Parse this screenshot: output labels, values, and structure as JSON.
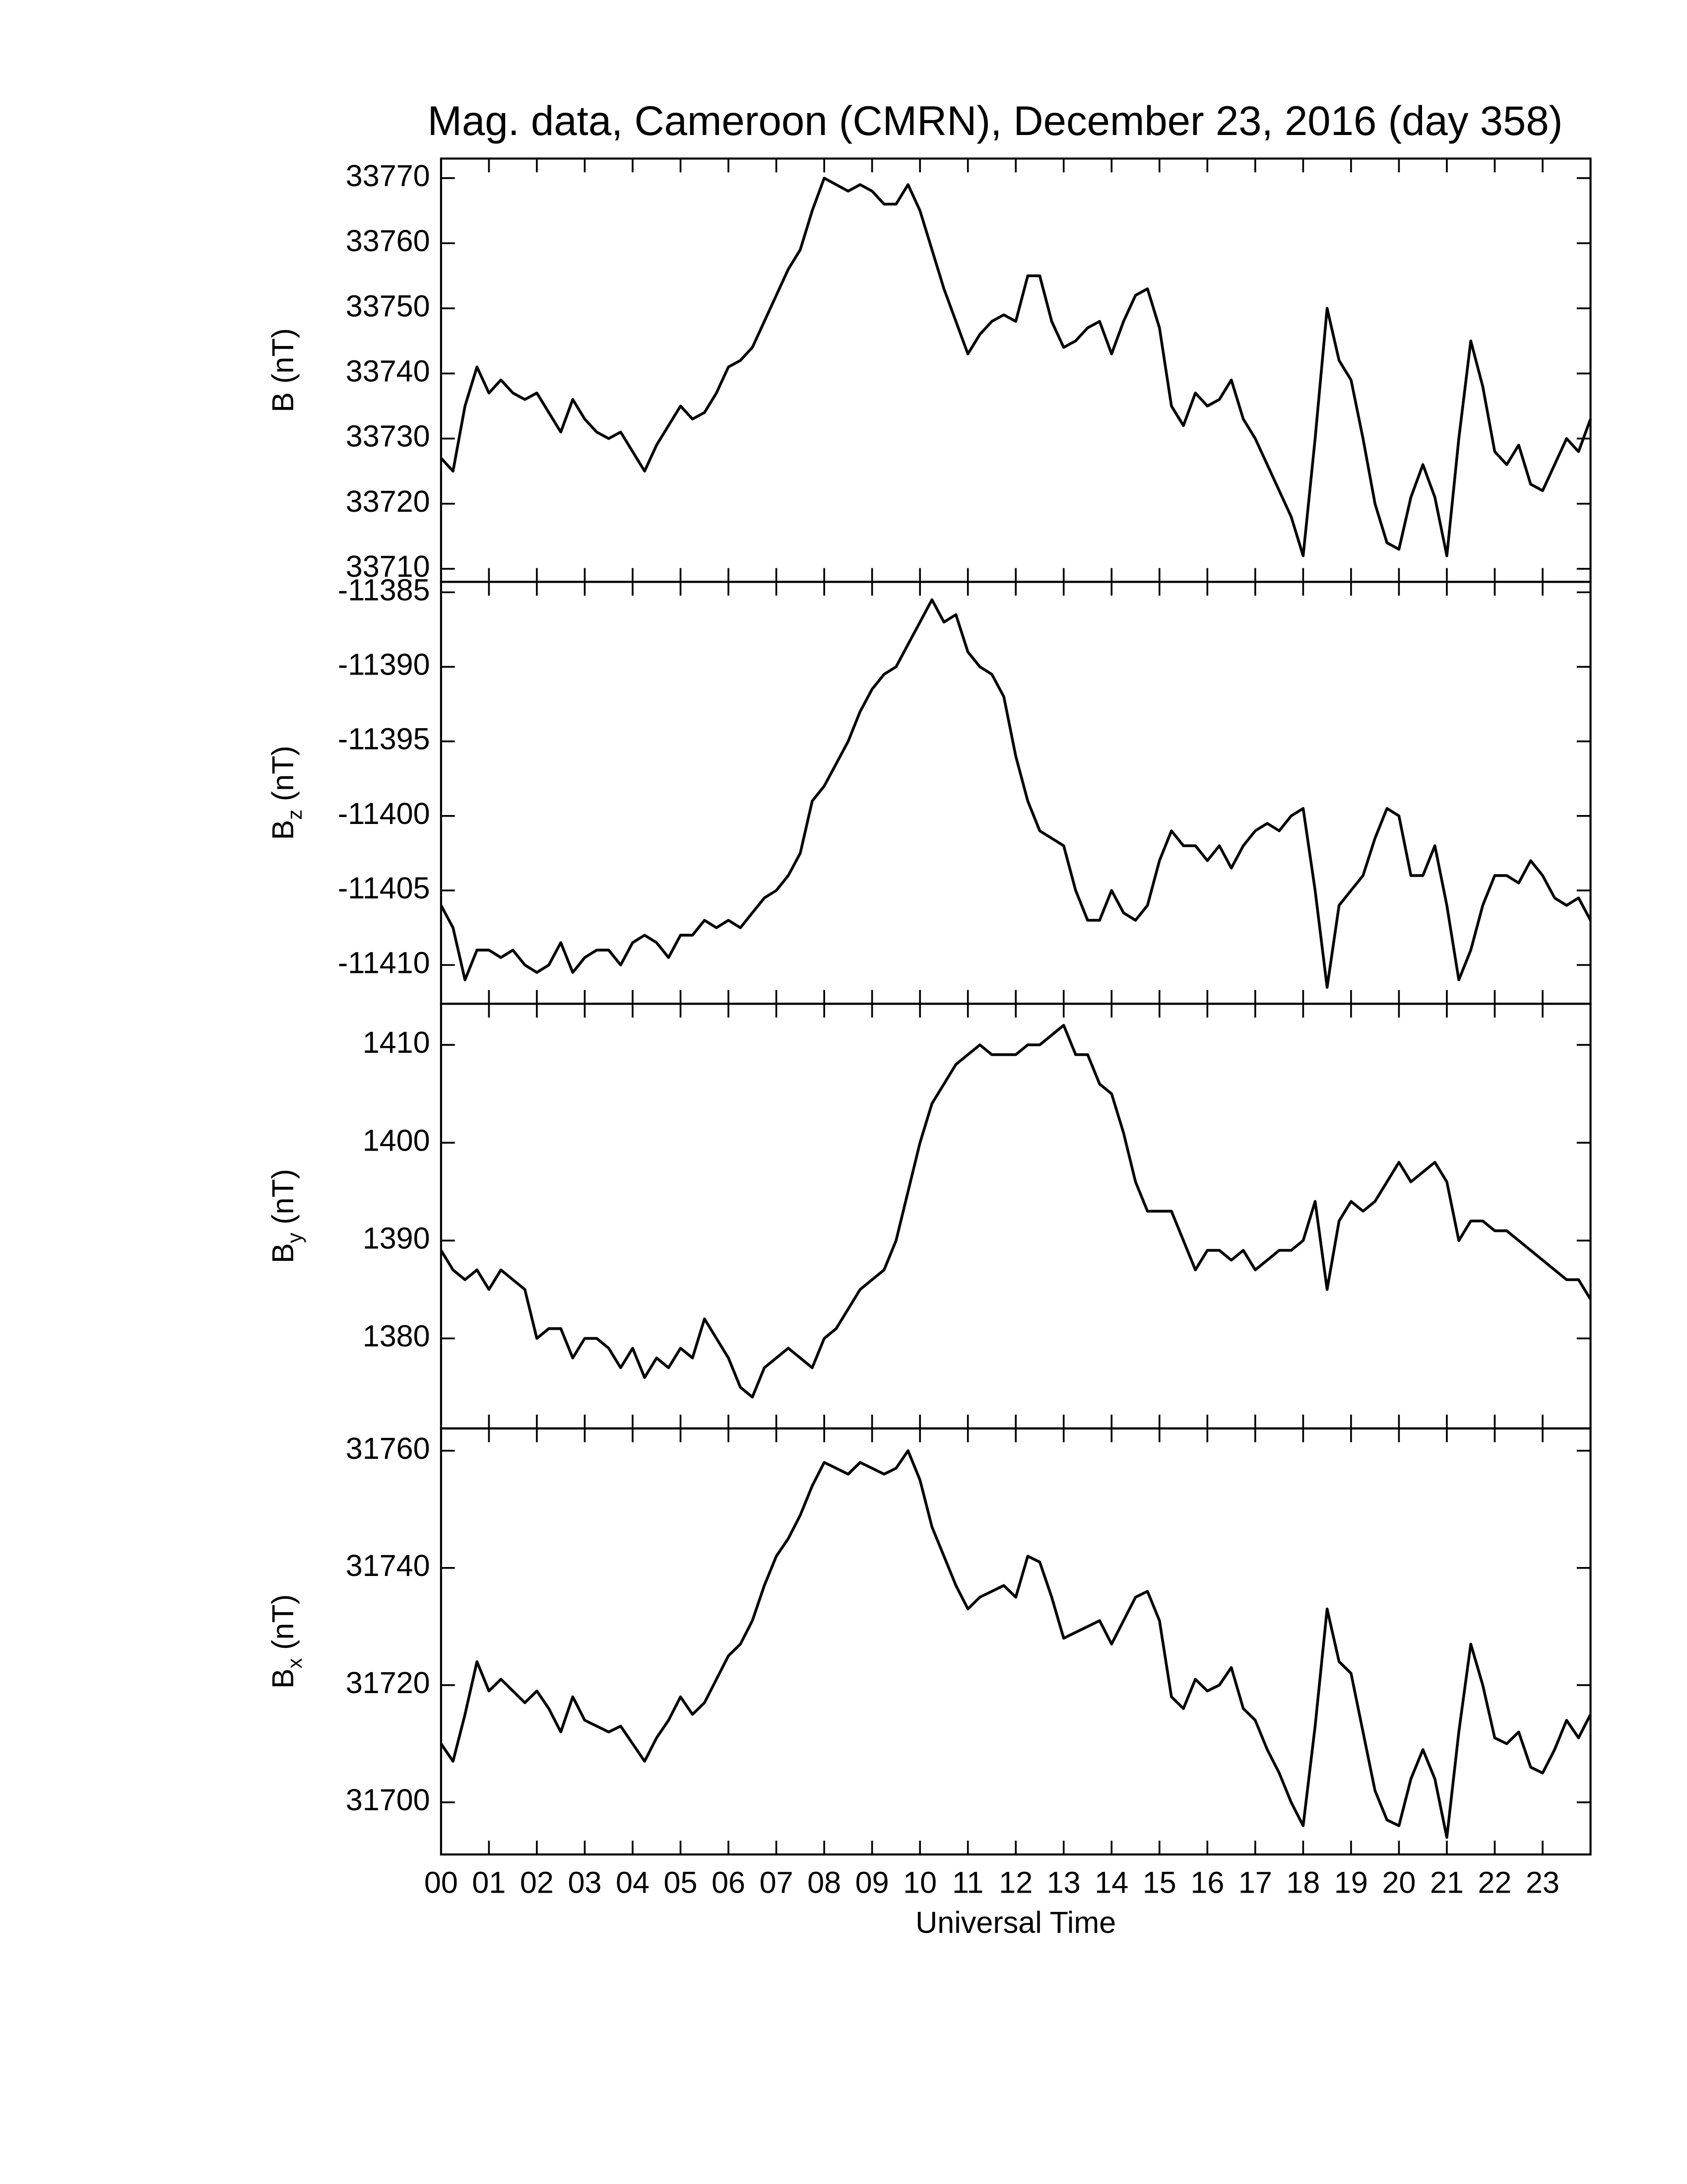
{
  "chart_data": [
    {
      "type": "line",
      "title": "Mag. data, Cameroon (CMRN), December 23, 2016 (day 358)",
      "ylabel": "B (nT)",
      "color": "#000000",
      "xlim": [
        0,
        24
      ],
      "ylim": [
        33708,
        33773
      ],
      "yticks": [
        33710,
        33720,
        33730,
        33740,
        33750,
        33760,
        33770
      ],
      "x": [
        0,
        0.25,
        0.5,
        0.75,
        1,
        1.25,
        1.5,
        1.75,
        2,
        2.25,
        2.5,
        2.75,
        3,
        3.25,
        3.5,
        3.75,
        4,
        4.25,
        4.5,
        4.75,
        5,
        5.25,
        5.5,
        5.75,
        6,
        6.25,
        6.5,
        6.75,
        7,
        7.25,
        7.5,
        7.75,
        8,
        8.25,
        8.5,
        8.75,
        9,
        9.25,
        9.5,
        9.75,
        10,
        10.25,
        10.5,
        10.75,
        11,
        11.25,
        11.5,
        11.75,
        12,
        12.25,
        12.5,
        12.75,
        13,
        13.25,
        13.5,
        13.75,
        14,
        14.25,
        14.5,
        14.75,
        15,
        15.25,
        15.5,
        15.75,
        16,
        16.25,
        16.5,
        16.75,
        17,
        17.25,
        17.5,
        17.75,
        18,
        18.25,
        18.5,
        18.75,
        19,
        19.25,
        19.5,
        19.75,
        20,
        20.25,
        20.5,
        20.75,
        21,
        21.25,
        21.5,
        21.75,
        22,
        22.25,
        22.5,
        22.75,
        23,
        23.25,
        23.5,
        23.75,
        24
      ],
      "values": [
        33727,
        33725,
        33735,
        33741,
        33737,
        33739,
        33737,
        33736,
        33737,
        33734,
        33731,
        33736,
        33733,
        33731,
        33730,
        33731,
        33728,
        33725,
        33729,
        33732,
        33735,
        33733,
        33734,
        33737,
        33741,
        33742,
        33744,
        33748,
        33752,
        33756,
        33759,
        33765,
        33770,
        33769,
        33768,
        33769,
        33768,
        33766,
        33766,
        33769,
        33765,
        33759,
        33753,
        33748,
        33743,
        33746,
        33748,
        33749,
        33748,
        33755,
        33755,
        33748,
        33744,
        33745,
        33747,
        33748,
        33743,
        33748,
        33752,
        33753,
        33747,
        33735,
        33732,
        33737,
        33735,
        33736,
        33739,
        33733,
        33730,
        33726,
        33722,
        33718,
        33712,
        33730,
        33750,
        33742,
        33739,
        33730,
        33720,
        33714,
        33713,
        33721,
        33726,
        33721,
        33712,
        33730,
        33745,
        33738,
        33728,
        33726,
        33729,
        33723,
        33722,
        33726,
        33730,
        33728,
        33733
      ]
    },
    {
      "type": "line",
      "ylabel": "B",
      "ylabel_subscript": "z",
      "ylabel_unit": "(nT)",
      "color": "#000000",
      "xlim": [
        0,
        24
      ],
      "ylim": [
        -11412.6,
        -11384.3
      ],
      "yticks": [
        -11410,
        -11405,
        -11400,
        -11395,
        -11390,
        -11385
      ],
      "x": [
        0,
        0.25,
        0.5,
        0.75,
        1,
        1.25,
        1.5,
        1.75,
        2,
        2.25,
        2.5,
        2.75,
        3,
        3.25,
        3.5,
        3.75,
        4,
        4.25,
        4.5,
        4.75,
        5,
        5.25,
        5.5,
        5.75,
        6,
        6.25,
        6.5,
        6.75,
        7,
        7.25,
        7.5,
        7.75,
        8,
        8.25,
        8.5,
        8.75,
        9,
        9.25,
        9.5,
        9.75,
        10,
        10.25,
        10.5,
        10.75,
        11,
        11.25,
        11.5,
        11.75,
        12,
        12.25,
        12.5,
        12.75,
        13,
        13.25,
        13.5,
        13.75,
        14,
        14.25,
        14.5,
        14.75,
        15,
        15.25,
        15.5,
        15.75,
        16,
        16.25,
        16.5,
        16.75,
        17,
        17.25,
        17.5,
        17.75,
        18,
        18.25,
        18.5,
        18.75,
        19,
        19.25,
        19.5,
        19.75,
        20,
        20.25,
        20.5,
        20.75,
        21,
        21.25,
        21.5,
        21.75,
        22,
        22.25,
        22.5,
        22.75,
        23,
        23.25,
        23.5,
        23.75,
        24
      ],
      "values": [
        -11406,
        -11407.5,
        -11411,
        -11409,
        -11409,
        -11409.5,
        -11409,
        -11410,
        -11410.5,
        -11410,
        -11408.5,
        -11410.5,
        -11409.5,
        -11409,
        -11409,
        -11410,
        -11408.5,
        -11408,
        -11408.5,
        -11409.5,
        -11408,
        -11408,
        -11407,
        -11407.5,
        -11407,
        -11407.5,
        -11406.5,
        -11405.5,
        -11405,
        -11404,
        -11402.5,
        -11399,
        -11398,
        -11396.5,
        -11395,
        -11393,
        -11391.5,
        -11390.5,
        -11390,
        -11388.5,
        -11387,
        -11385.5,
        -11387,
        -11386.5,
        -11389,
        -11390,
        -11390.5,
        -11392,
        -11396,
        -11399,
        -11401,
        -11401.5,
        -11402,
        -11405,
        -11407,
        -11407,
        -11405,
        -11406.5,
        -11407,
        -11406,
        -11403,
        -11401,
        -11402,
        -11402,
        -11403,
        -11402,
        -11403.5,
        -11402,
        -11401,
        -11400.5,
        -11401,
        -11400,
        -11399.5,
        -11405,
        -11411.5,
        -11406,
        -11405,
        -11404,
        -11401.5,
        -11399.5,
        -11400,
        -11404,
        -11404,
        -11402,
        -11406,
        -11411,
        -11409,
        -11406,
        -11404,
        -11404,
        -11404.5,
        -11403,
        -11404,
        -11405.5,
        -11406,
        -11405.5,
        -11407
      ]
    },
    {
      "type": "line",
      "ylabel": "B",
      "ylabel_subscript": "y",
      "ylabel_unit": "(nT)",
      "color": "#000000",
      "xlim": [
        0,
        24
      ],
      "ylim": [
        1370.8,
        1414.2
      ],
      "yticks": [
        1380,
        1390,
        1400,
        1410
      ],
      "x": [
        0,
        0.25,
        0.5,
        0.75,
        1,
        1.25,
        1.5,
        1.75,
        2,
        2.25,
        2.5,
        2.75,
        3,
        3.25,
        3.5,
        3.75,
        4,
        4.25,
        4.5,
        4.75,
        5,
        5.25,
        5.5,
        5.75,
        6,
        6.25,
        6.5,
        6.75,
        7,
        7.25,
        7.5,
        7.75,
        8,
        8.25,
        8.5,
        8.75,
        9,
        9.25,
        9.5,
        9.75,
        10,
        10.25,
        10.5,
        10.75,
        11,
        11.25,
        11.5,
        11.75,
        12,
        12.25,
        12.5,
        12.75,
        13,
        13.25,
        13.5,
        13.75,
        14,
        14.25,
        14.5,
        14.75,
        15,
        15.25,
        15.5,
        15.75,
        16,
        16.25,
        16.5,
        16.75,
        17,
        17.25,
        17.5,
        17.75,
        18,
        18.25,
        18.5,
        18.75,
        19,
        19.25,
        19.5,
        19.75,
        20,
        20.25,
        20.5,
        20.75,
        21,
        21.25,
        21.5,
        21.75,
        22,
        22.25,
        22.5,
        22.75,
        23,
        23.25,
        23.5,
        23.75,
        24
      ],
      "values": [
        1389,
        1387,
        1386,
        1387,
        1385,
        1387,
        1386,
        1385,
        1380,
        1381,
        1381,
        1378,
        1380,
        1380,
        1379,
        1377,
        1379,
        1376,
        1378,
        1377,
        1379,
        1378,
        1382,
        1380,
        1378,
        1375,
        1374,
        1377,
        1378,
        1379,
        1378,
        1377,
        1380,
        1381,
        1383,
        1385,
        1386,
        1387,
        1390,
        1395,
        1400,
        1404,
        1406,
        1408,
        1409,
        1410,
        1409,
        1409,
        1409,
        1410,
        1410,
        1411,
        1412,
        1409,
        1409,
        1406,
        1405,
        1401,
        1396,
        1393,
        1393,
        1393,
        1390,
        1387,
        1389,
        1389,
        1388,
        1389,
        1387,
        1388,
        1389,
        1389,
        1390,
        1394,
        1385,
        1392,
        1394,
        1393,
        1394,
        1396,
        1398,
        1396,
        1397,
        1398,
        1396,
        1390,
        1392,
        1392,
        1391,
        1391,
        1390,
        1389,
        1388,
        1387,
        1386,
        1386,
        1384
      ]
    },
    {
      "type": "line",
      "ylabel": "B",
      "ylabel_subscript": "x",
      "ylabel_unit": "(nT)",
      "xlabel": "Universal Time",
      "color": "#000000",
      "xlim": [
        0,
        24
      ],
      "ylim": [
        31691.1,
        31763.8
      ],
      "yticks": [
        31700,
        31720,
        31740,
        31760
      ],
      "xticks": [
        {
          "value": 0,
          "label": "00"
        },
        {
          "value": 1,
          "label": "01"
        },
        {
          "value": 2,
          "label": "02"
        },
        {
          "value": 3,
          "label": "03"
        },
        {
          "value": 4,
          "label": "04"
        },
        {
          "value": 5,
          "label": "05"
        },
        {
          "value": 6,
          "label": "06"
        },
        {
          "value": 7,
          "label": "07"
        },
        {
          "value": 8,
          "label": "08"
        },
        {
          "value": 9,
          "label": "09"
        },
        {
          "value": 10,
          "label": "10"
        },
        {
          "value": 11,
          "label": "11"
        },
        {
          "value": 12,
          "label": "12"
        },
        {
          "value": 13,
          "label": "13"
        },
        {
          "value": 14,
          "label": "14"
        },
        {
          "value": 15,
          "label": "15"
        },
        {
          "value": 16,
          "label": "16"
        },
        {
          "value": 17,
          "label": "17"
        },
        {
          "value": 18,
          "label": "18"
        },
        {
          "value": 19,
          "label": "19"
        },
        {
          "value": 20,
          "label": "20"
        },
        {
          "value": 21,
          "label": "21"
        },
        {
          "value": 22,
          "label": "22"
        },
        {
          "value": 23,
          "label": "23"
        }
      ],
      "x": [
        0,
        0.25,
        0.5,
        0.75,
        1,
        1.25,
        1.5,
        1.75,
        2,
        2.25,
        2.5,
        2.75,
        3,
        3.25,
        3.5,
        3.75,
        4,
        4.25,
        4.5,
        4.75,
        5,
        5.25,
        5.5,
        5.75,
        6,
        6.25,
        6.5,
        6.75,
        7,
        7.25,
        7.5,
        7.75,
        8,
        8.25,
        8.5,
        8.75,
        9,
        9.25,
        9.5,
        9.75,
        10,
        10.25,
        10.5,
        10.75,
        11,
        11.25,
        11.5,
        11.75,
        12,
        12.25,
        12.5,
        12.75,
        13,
        13.25,
        13.5,
        13.75,
        14,
        14.25,
        14.5,
        14.75,
        15,
        15.25,
        15.5,
        15.75,
        16,
        16.25,
        16.5,
        16.75,
        17,
        17.25,
        17.5,
        17.75,
        18,
        18.25,
        18.5,
        18.75,
        19,
        19.25,
        19.5,
        19.75,
        20,
        20.25,
        20.5,
        20.75,
        21,
        21.25,
        21.5,
        21.75,
        22,
        22.25,
        22.5,
        22.75,
        23,
        23.25,
        23.5,
        23.75,
        24
      ],
      "values": [
        31710,
        31707,
        31715,
        31724,
        31719,
        31721,
        31719,
        31717,
        31719,
        31716,
        31712,
        31718,
        31714,
        31713,
        31712,
        31713,
        31710,
        31707,
        31711,
        31714,
        31718,
        31715,
        31717,
        31721,
        31725,
        31727,
        31731,
        31737,
        31742,
        31745,
        31749,
        31754,
        31758,
        31757,
        31756,
        31758,
        31757,
        31756,
        31757,
        31760,
        31755,
        31747,
        31742,
        31737,
        31733,
        31735,
        31736,
        31737,
        31735,
        31742,
        31741,
        31735,
        31728,
        31729,
        31730,
        31731,
        31727,
        31731,
        31735,
        31736,
        31731,
        31718,
        31716,
        31721,
        31719,
        31720,
        31723,
        31716,
        31714,
        31709,
        31705,
        31700,
        31696,
        31713,
        31733,
        31724,
        31722,
        31712,
        31702,
        31697,
        31696,
        31704,
        31709,
        31704,
        31694,
        31712,
        31727,
        31720,
        31711,
        31710,
        31712,
        31706,
        31705,
        31709,
        31714,
        31711,
        31715
      ]
    }
  ]
}
